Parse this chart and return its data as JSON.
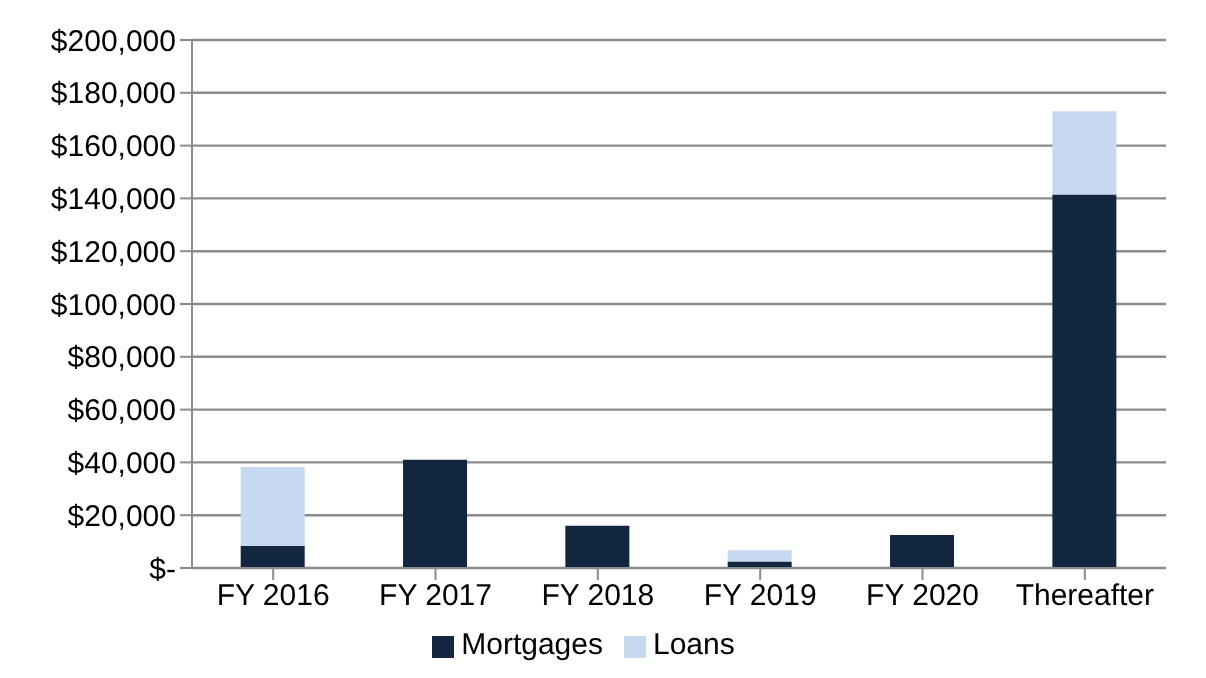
{
  "chart_data": {
    "type": "bar",
    "stacked": true,
    "categories": [
      "FY 2016",
      "FY 2017",
      "FY 2018",
      "FY 2019",
      "FY 2020",
      "Thereafter"
    ],
    "series": [
      {
        "name": "Mortgages",
        "color": "#12263f",
        "values": [
          8300,
          41000,
          16000,
          2500,
          12500,
          141500
        ]
      },
      {
        "name": "Loans",
        "color": "#c6d9f0",
        "values": [
          30000,
          0,
          0,
          4200,
          0,
          31500
        ]
      }
    ],
    "ylim": [
      0,
      200000
    ],
    "yticks": [
      {
        "value": 0,
        "label": "$-"
      },
      {
        "value": 20000,
        "label": "$20,000"
      },
      {
        "value": 40000,
        "label": "$40,000"
      },
      {
        "value": 60000,
        "label": "$60,000"
      },
      {
        "value": 80000,
        "label": "$80,000"
      },
      {
        "value": 100000,
        "label": "$100,000"
      },
      {
        "value": 120000,
        "label": "$120,000"
      },
      {
        "value": 140000,
        "label": "$140,000"
      },
      {
        "value": 160000,
        "label": "$160,000"
      },
      {
        "value": 180000,
        "label": "$180,000"
      },
      {
        "value": 200000,
        "label": "$200,000"
      }
    ],
    "grid": "y",
    "legend": "bottom"
  }
}
